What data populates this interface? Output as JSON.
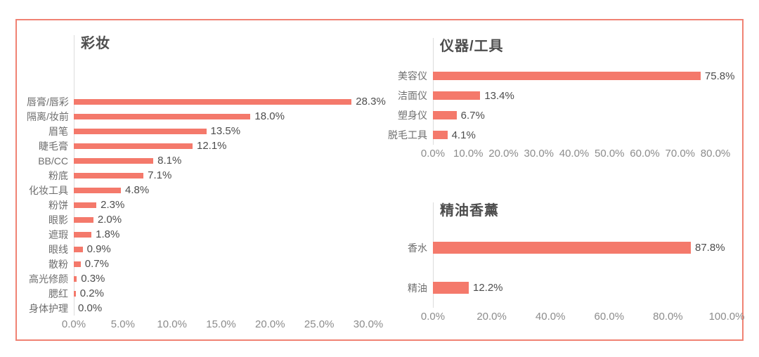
{
  "colors": {
    "bar": "#F4796B",
    "frame_border": "#F08273",
    "title_text": "#4D4D4D",
    "category_text": "#6E6E6E",
    "value_text": "#4D4D4D",
    "tick_text": "#8C8C8C",
    "axis_line": "#DCDCDC"
  },
  "chart_data": [
    {
      "type": "bar",
      "orientation": "horizontal",
      "title": "彩妆",
      "categories": [
        "唇膏/唇彩",
        "隔离/妆前",
        "眉笔",
        "睫毛膏",
        "BB/CC",
        "粉底",
        "化妆工具",
        "粉饼",
        "眼影",
        "遮瑕",
        "眼线",
        "散粉",
        "高光修颜",
        "腮红",
        "身体护理"
      ],
      "values": [
        28.3,
        18.0,
        13.5,
        12.1,
        8.1,
        7.1,
        4.8,
        2.3,
        2.0,
        1.8,
        0.9,
        0.7,
        0.3,
        0.2,
        0.0
      ],
      "value_labels": [
        "28.3%",
        "18.0%",
        "13.5%",
        "12.1%",
        "8.1%",
        "7.1%",
        "4.8%",
        "2.3%",
        "2.0%",
        "1.8%",
        "0.9%",
        "0.7%",
        "0.3%",
        "0.2%",
        "0.0%"
      ],
      "xlim": [
        0,
        30
      ],
      "ticks": [
        "0.0%",
        "5.0%",
        "10.0%",
        "15.0%",
        "20.0%",
        "25.0%",
        "30.0%"
      ],
      "grid": false,
      "legend": null
    },
    {
      "type": "bar",
      "orientation": "horizontal",
      "title": "仪器/工具",
      "categories": [
        "美容仪",
        "洁面仪",
        "塑身仪",
        "脱毛工具"
      ],
      "values": [
        75.8,
        13.4,
        6.7,
        4.1
      ],
      "value_labels": [
        "75.8%",
        "13.4%",
        "6.7%",
        "4.1%"
      ],
      "xlim": [
        0,
        80
      ],
      "ticks": [
        "0.0%",
        "10.0%",
        "20.0%",
        "30.0%",
        "40.0%",
        "50.0%",
        "60.0%",
        "70.0%",
        "80.0%"
      ],
      "grid": false,
      "legend": null
    },
    {
      "type": "bar",
      "orientation": "horizontal",
      "title": "精油香薰",
      "categories": [
        "香水",
        "精油"
      ],
      "values": [
        87.8,
        12.2
      ],
      "value_labels": [
        "87.8%",
        "12.2%"
      ],
      "xlim": [
        0,
        100
      ],
      "ticks": [
        "0.0%",
        "20.0%",
        "40.0%",
        "60.0%",
        "80.0%",
        "100.0%"
      ],
      "grid": false,
      "legend": null
    }
  ]
}
